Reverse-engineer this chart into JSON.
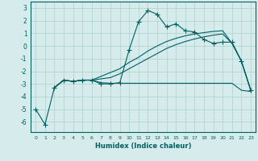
{
  "title": "",
  "xlabel": "Humidex (Indice chaleur)",
  "bg_color": "#d6ecec",
  "grid_color": "#b0d0d0",
  "line_color": "#006060",
  "xlim": [
    -0.5,
    23.5
  ],
  "ylim": [
    -6.8,
    3.5
  ],
  "yticks": [
    -6,
    -5,
    -4,
    -3,
    -2,
    -1,
    0,
    1,
    2,
    3
  ],
  "xticks": [
    0,
    1,
    2,
    3,
    4,
    5,
    6,
    7,
    8,
    9,
    10,
    11,
    12,
    13,
    14,
    15,
    16,
    17,
    18,
    19,
    20,
    21,
    22,
    23
  ],
  "line1_x": [
    0,
    1,
    2,
    3,
    4,
    5,
    6,
    7,
    8,
    9,
    10,
    11,
    12,
    13,
    14,
    15,
    16,
    17,
    18,
    19,
    20,
    21,
    22,
    23
  ],
  "line1_y": [
    -5.0,
    -6.2,
    -3.3,
    -2.7,
    -2.8,
    -2.7,
    -2.7,
    -3.0,
    -3.0,
    -2.9,
    -0.3,
    1.9,
    2.8,
    2.5,
    1.5,
    1.75,
    1.2,
    1.1,
    0.5,
    0.2,
    0.3,
    0.3,
    -1.2,
    -3.5
  ],
  "line2_x": [
    2,
    3,
    4,
    5,
    6,
    7,
    8,
    9,
    10,
    11,
    12,
    13,
    14,
    15,
    16,
    17,
    18,
    19,
    20,
    21,
    22,
    23
  ],
  "line2_y": [
    -3.3,
    -2.7,
    -2.8,
    -2.7,
    -2.7,
    -2.9,
    -2.95,
    -2.95,
    -2.95,
    -2.95,
    -2.95,
    -2.95,
    -2.95,
    -2.95,
    -2.95,
    -2.95,
    -2.95,
    -2.95,
    -2.95,
    -2.95,
    -3.5,
    -3.6
  ],
  "line3_x": [
    2,
    3,
    4,
    5,
    6,
    7,
    8,
    9,
    10,
    11,
    12,
    13,
    14,
    15,
    16,
    17,
    18,
    19,
    20,
    21,
    22,
    23
  ],
  "line3_y": [
    -3.3,
    -2.7,
    -2.8,
    -2.7,
    -2.7,
    -2.6,
    -2.5,
    -2.2,
    -1.8,
    -1.4,
    -1.0,
    -0.6,
    -0.2,
    0.1,
    0.35,
    0.55,
    0.72,
    0.85,
    0.95,
    0.2,
    -1.2,
    -3.5
  ],
  "line4_x": [
    2,
    3,
    4,
    5,
    6,
    7,
    8,
    9,
    10,
    11,
    12,
    13,
    14,
    15,
    16,
    17,
    18,
    19,
    20,
    21,
    22,
    23
  ],
  "line4_y": [
    -3.3,
    -2.7,
    -2.8,
    -2.7,
    -2.7,
    -2.4,
    -2.1,
    -1.8,
    -1.3,
    -0.9,
    -0.4,
    0.0,
    0.35,
    0.6,
    0.8,
    0.95,
    1.05,
    1.15,
    1.2,
    0.2,
    -1.2,
    -3.5
  ]
}
